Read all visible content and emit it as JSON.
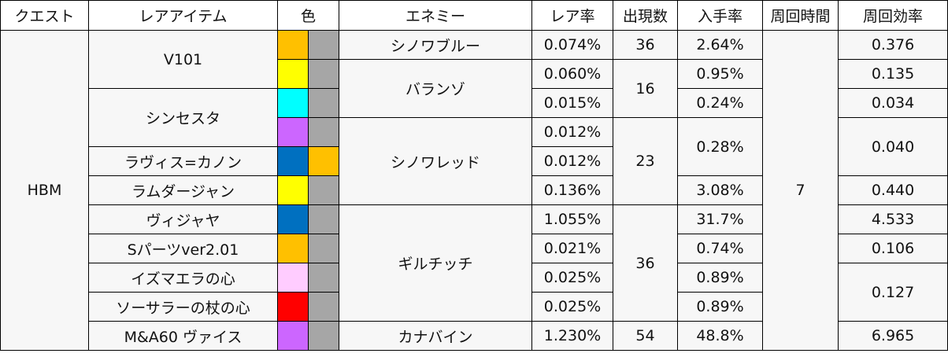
{
  "table": {
    "headers": [
      "クエスト",
      "レアアイテム",
      "色",
      "エネミー",
      "レア率",
      "出現数",
      "入手率",
      "周回時間",
      "周回効率"
    ],
    "quest": "HBM",
    "cycle_time": "7",
    "items": [
      "V101",
      "シンセスタ",
      "ラヴィス=カノン",
      "ラムダージャン",
      "ヴィジャヤ",
      "Sパーツver2.01",
      "イズマエラの心",
      "ソーサラーの杖の心",
      "M&A60 ヴァイス"
    ],
    "enemies": [
      "シノワブルー",
      "バランゾ",
      "シノワレッド",
      "ギルチッチ",
      "カナバイン"
    ],
    "rare_rates": [
      "0.074%",
      "0.060%",
      "0.015%",
      "0.012%",
      "0.012%",
      "0.136%",
      "1.055%",
      "0.021%",
      "0.025%",
      "0.025%",
      "1.230%"
    ],
    "appear_counts": [
      "36",
      "16",
      "23",
      "36",
      "54"
    ],
    "acquire_rates": [
      "2.64%",
      "0.95%",
      "0.24%",
      "0.28%",
      "3.08%",
      "31.7%",
      "0.74%",
      "0.89%",
      "0.89%",
      "48.8%"
    ],
    "efficiencies": [
      "0.376",
      "0.135",
      "0.034",
      "0.040",
      "0.440",
      "4.533",
      "0.106",
      "0.127",
      "6.965"
    ],
    "colors": {
      "orange": "#ffc000",
      "yellow": "#ffff00",
      "cyan": "#00ffff",
      "purple": "#cc66ff",
      "blue": "#0070c0",
      "pink": "#ffccff",
      "red": "#ff0000",
      "gray": "#a6a6a6"
    }
  }
}
